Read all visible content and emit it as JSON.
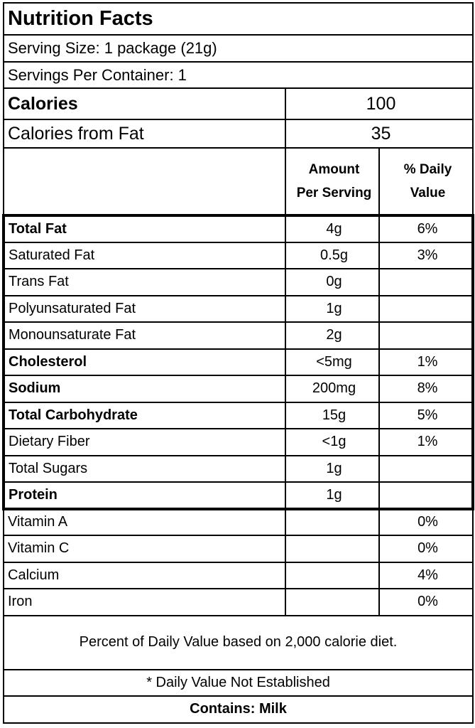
{
  "title": "Nutrition Facts",
  "serving_size": "Serving Size: 1 package (21g)",
  "servings_per_container": "Servings Per Container: 1",
  "calories": {
    "label": "Calories",
    "value": "100"
  },
  "calories_from_fat": {
    "label": "Calories from Fat",
    "value": "35"
  },
  "headers": {
    "amount": [
      "Amount",
      "Per Serving"
    ],
    "daily": [
      "% Daily",
      "Value"
    ]
  },
  "nutrients": [
    {
      "name": "Total Fat",
      "amount": "4g",
      "dv": "6%",
      "bold": true
    },
    {
      "name": "Saturated Fat",
      "amount": "0.5g",
      "dv": "3%",
      "bold": false
    },
    {
      "name": "Trans Fat",
      "amount": "0g",
      "dv": "",
      "bold": false
    },
    {
      "name": "Polyunsaturated Fat",
      "amount": "1g",
      "dv": "",
      "bold": false
    },
    {
      "name": "Monounsaturate Fat",
      "amount": "2g",
      "dv": "",
      "bold": false
    },
    {
      "name": "Cholesterol",
      "amount": "<5mg",
      "dv": "1%",
      "bold": true
    },
    {
      "name": "Sodium",
      "amount": "200mg",
      "dv": "8%",
      "bold": true
    },
    {
      "name": "Total Carbohydrate",
      "amount": "15g",
      "dv": "5%",
      "bold": true
    },
    {
      "name": "Dietary Fiber",
      "amount": "<1g",
      "dv": "1%",
      "bold": false
    },
    {
      "name": "Total Sugars",
      "amount": "1g",
      "dv": "",
      "bold": false
    },
    {
      "name": "Protein",
      "amount": "1g",
      "dv": "",
      "bold": true
    }
  ],
  "vitamins": [
    {
      "name": "Vitamin A",
      "amount": "",
      "dv": "0%"
    },
    {
      "name": "Vitamin C",
      "amount": "",
      "dv": "0%"
    },
    {
      "name": "Calcium",
      "amount": "",
      "dv": "4%"
    },
    {
      "name": "Iron",
      "amount": "",
      "dv": "0%"
    }
  ],
  "footnote": "Percent of Daily Value based on 2,000 calorie diet.",
  "not_established": "* Daily Value Not Established",
  "contains": "Contains: Milk"
}
